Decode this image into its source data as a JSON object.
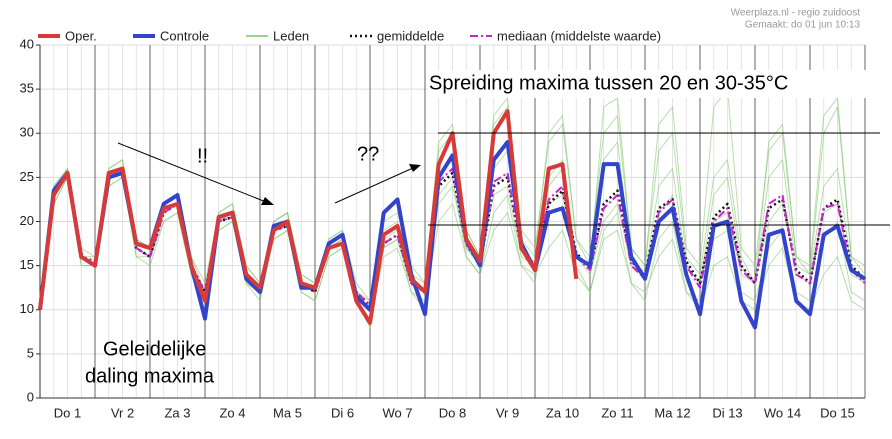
{
  "chart_data": {
    "type": "line",
    "source": "Weerplaza.nl - regio zuidoost",
    "created": "Gemaakt: do 01 jun 10:13",
    "annotations": [
      "!!",
      "??",
      "Spreiding maxima tussen 20 en 30-35°C",
      "Geleidelijke",
      "daling maxima"
    ],
    "categories": [
      null,
      null,
      "Do 1",
      null,
      null,
      null,
      "Vr 2",
      null,
      null,
      null,
      "Za 3",
      null,
      null,
      null,
      "Zo 4",
      null,
      null,
      null,
      "Ma 5",
      null,
      null,
      null,
      "Di 6",
      null,
      null,
      null,
      "Wo 7",
      null,
      null,
      null,
      "Do 8",
      null,
      null,
      null,
      "Vr 9",
      null,
      null,
      null,
      "Za 10",
      null,
      null,
      null,
      "Zo 11",
      null,
      null,
      null,
      "Ma 12",
      null,
      null,
      null,
      "Di 13",
      null,
      null,
      null,
      "Wo 14",
      null,
      null,
      null,
      "Do 15",
      null,
      null
    ],
    "ylim": [
      0,
      40
    ],
    "yticks": [
      0,
      5,
      10,
      15,
      20,
      25,
      30,
      35,
      40
    ],
    "grid": true,
    "series": [
      {
        "name": "Oper.",
        "color": "#d83a3a",
        "width": 4,
        "values": [
          10,
          23,
          25.5,
          16,
          15,
          25.5,
          26,
          17.5,
          17,
          21.5,
          22,
          15,
          11,
          20.5,
          21,
          14,
          12.5,
          19,
          20,
          13,
          12.5,
          17,
          17.5,
          11,
          8.5,
          18.5,
          19.5,
          13.5,
          12,
          26.5,
          30,
          18,
          15.5,
          30,
          32.5,
          17,
          14.5,
          26,
          26.5,
          13.5,
          null,
          null,
          null,
          null,
          null,
          null,
          null,
          null,
          null,
          null,
          null,
          null,
          null,
          null,
          null,
          null,
          null,
          null,
          null,
          null,
          null
        ]
      },
      {
        "name": "Controle",
        "color": "#3344cc",
        "width": 4,
        "values": [
          10,
          23.5,
          25.5,
          16,
          15,
          25,
          25.5,
          17.5,
          17,
          22,
          23,
          15,
          9,
          20.5,
          21,
          13.5,
          12,
          19.5,
          20,
          12.5,
          12.5,
          17.5,
          18.5,
          11.5,
          10,
          21,
          22.5,
          14,
          9.5,
          25,
          27.5,
          18,
          15,
          27,
          29,
          17.5,
          14.5,
          21,
          21.5,
          16,
          15,
          26.5,
          26.5,
          16,
          13.5,
          20,
          21.5,
          14,
          9.5,
          19.5,
          20,
          11,
          8,
          18.5,
          19,
          11,
          9.5,
          18.5,
          19.5,
          14.5,
          13.5
        ]
      },
      {
        "name": "Leden",
        "color": "#7cc46a",
        "width": 1,
        "members": [
          [
            10,
            24,
            26,
            17,
            16,
            26,
            27,
            18,
            17,
            22,
            23,
            16,
            12,
            21,
            22,
            15,
            13,
            20,
            21,
            14,
            13,
            18,
            19,
            12,
            11,
            19,
            20,
            14,
            13,
            28,
            30,
            19,
            16,
            31,
            33,
            18,
            16,
            30,
            32,
            18,
            15,
            33,
            34,
            17,
            15,
            28,
            30,
            16,
            14,
            25,
            27,
            16,
            13,
            29,
            31,
            16,
            14,
            30,
            33,
            16,
            14
          ],
          [
            10,
            22,
            25,
            15,
            15,
            24,
            25,
            16,
            16,
            20,
            21,
            14,
            11,
            19,
            20,
            13,
            12,
            18,
            19,
            12,
            11,
            16,
            17,
            11,
            9,
            16,
            17,
            12,
            11,
            20,
            22,
            16,
            14,
            19,
            21,
            15,
            14,
            17,
            19,
            14,
            12,
            18,
            19,
            13,
            12,
            16,
            18,
            12,
            10,
            15,
            16,
            11,
            10,
            15,
            17,
            11,
            10,
            14,
            16,
            11,
            10
          ],
          [
            10,
            23,
            26,
            16,
            15,
            26,
            27,
            18,
            17,
            22,
            23,
            15,
            12,
            20,
            21,
            14,
            12,
            20,
            21,
            13,
            12,
            17,
            18,
            12,
            10,
            18,
            19,
            13,
            12,
            25,
            27,
            17,
            15,
            26,
            28,
            17,
            15,
            25,
            27,
            16,
            15,
            27,
            29,
            16,
            14,
            24,
            26,
            15,
            13,
            23,
            25,
            15,
            13,
            25,
            27,
            15,
            14,
            24,
            26,
            15,
            13
          ],
          [
            10,
            23,
            25,
            16,
            16,
            25,
            26,
            17,
            16,
            21,
            22,
            15,
            12,
            20,
            21,
            14,
            12,
            19,
            20,
            13,
            12,
            17,
            18,
            12,
            10,
            17,
            18,
            13,
            12,
            22,
            24,
            17,
            15,
            23,
            24,
            16,
            15,
            22,
            23,
            16,
            14,
            20,
            22,
            15,
            14,
            21,
            23,
            15,
            13,
            20,
            21,
            14,
            13,
            20,
            22,
            14,
            13,
            21,
            22,
            14,
            13
          ],
          [
            10,
            24,
            26,
            16,
            15,
            25,
            26,
            17,
            16,
            21,
            22,
            16,
            13,
            21,
            22,
            15,
            13,
            20,
            21,
            14,
            13,
            18,
            19,
            13,
            11,
            20,
            21,
            15,
            13,
            29,
            31,
            19,
            16,
            32,
            34,
            19,
            17,
            29,
            31,
            18,
            16,
            30,
            32,
            17,
            15,
            31,
            33,
            17,
            15,
            33,
            35,
            17,
            15,
            28,
            30,
            16,
            15,
            32,
            34,
            16,
            15
          ],
          [
            10,
            22,
            25,
            15,
            15,
            24,
            25,
            16,
            15,
            20,
            21,
            14,
            10,
            19,
            20,
            13,
            11,
            18,
            19,
            12,
            11,
            16,
            17,
            11,
            8,
            17,
            18,
            12,
            10,
            23,
            25,
            16,
            14,
            21,
            23,
            15,
            13,
            24,
            26,
            15,
            12,
            19,
            21,
            13,
            11,
            18,
            20,
            12,
            11,
            18,
            19,
            12,
            11,
            17,
            19,
            12,
            11,
            18,
            20,
            12,
            11
          ]
        ]
      },
      {
        "name": "gemiddelde",
        "color": "#111111",
        "width": 2.5,
        "dash": "2,3",
        "values": [
          10,
          23,
          25.5,
          16,
          15.5,
          25,
          25.5,
          17,
          16,
          21,
          22,
          15,
          12,
          20,
          20.5,
          14,
          12,
          19,
          19.5,
          13,
          12,
          17,
          17.5,
          12,
          10.5,
          17.5,
          18.5,
          13,
          12,
          24,
          25.5,
          17.5,
          15,
          24,
          25,
          17,
          15,
          22,
          23.5,
          16.5,
          14.5,
          22,
          23.5,
          15.5,
          14,
          21.5,
          22.5,
          15.5,
          13,
          20.5,
          22,
          15,
          13,
          21.5,
          22.5,
          14.5,
          13,
          21.5,
          22.5,
          15,
          13.5
        ]
      },
      {
        "name": "mediaan (middelste waarde)",
        "color": "#cc22cc",
        "width": 2,
        "dash": "8,3,2,3",
        "values": [
          10,
          23,
          25.5,
          16,
          15.5,
          25,
          25.5,
          17,
          16,
          21,
          22,
          15,
          12,
          20,
          20.5,
          14,
          12,
          19,
          19.5,
          13,
          12,
          17,
          17.5,
          12,
          10.5,
          17.5,
          18.5,
          13,
          12,
          24.5,
          26,
          17.5,
          15,
          24.5,
          25.5,
          17,
          15,
          22.5,
          24,
          16,
          14.5,
          21.5,
          23,
          15,
          13.5,
          21,
          22.5,
          15,
          12.5,
          20,
          21.5,
          14.5,
          13,
          22,
          23,
          14,
          13,
          21.5,
          22,
          14.5,
          13
        ]
      }
    ]
  }
}
